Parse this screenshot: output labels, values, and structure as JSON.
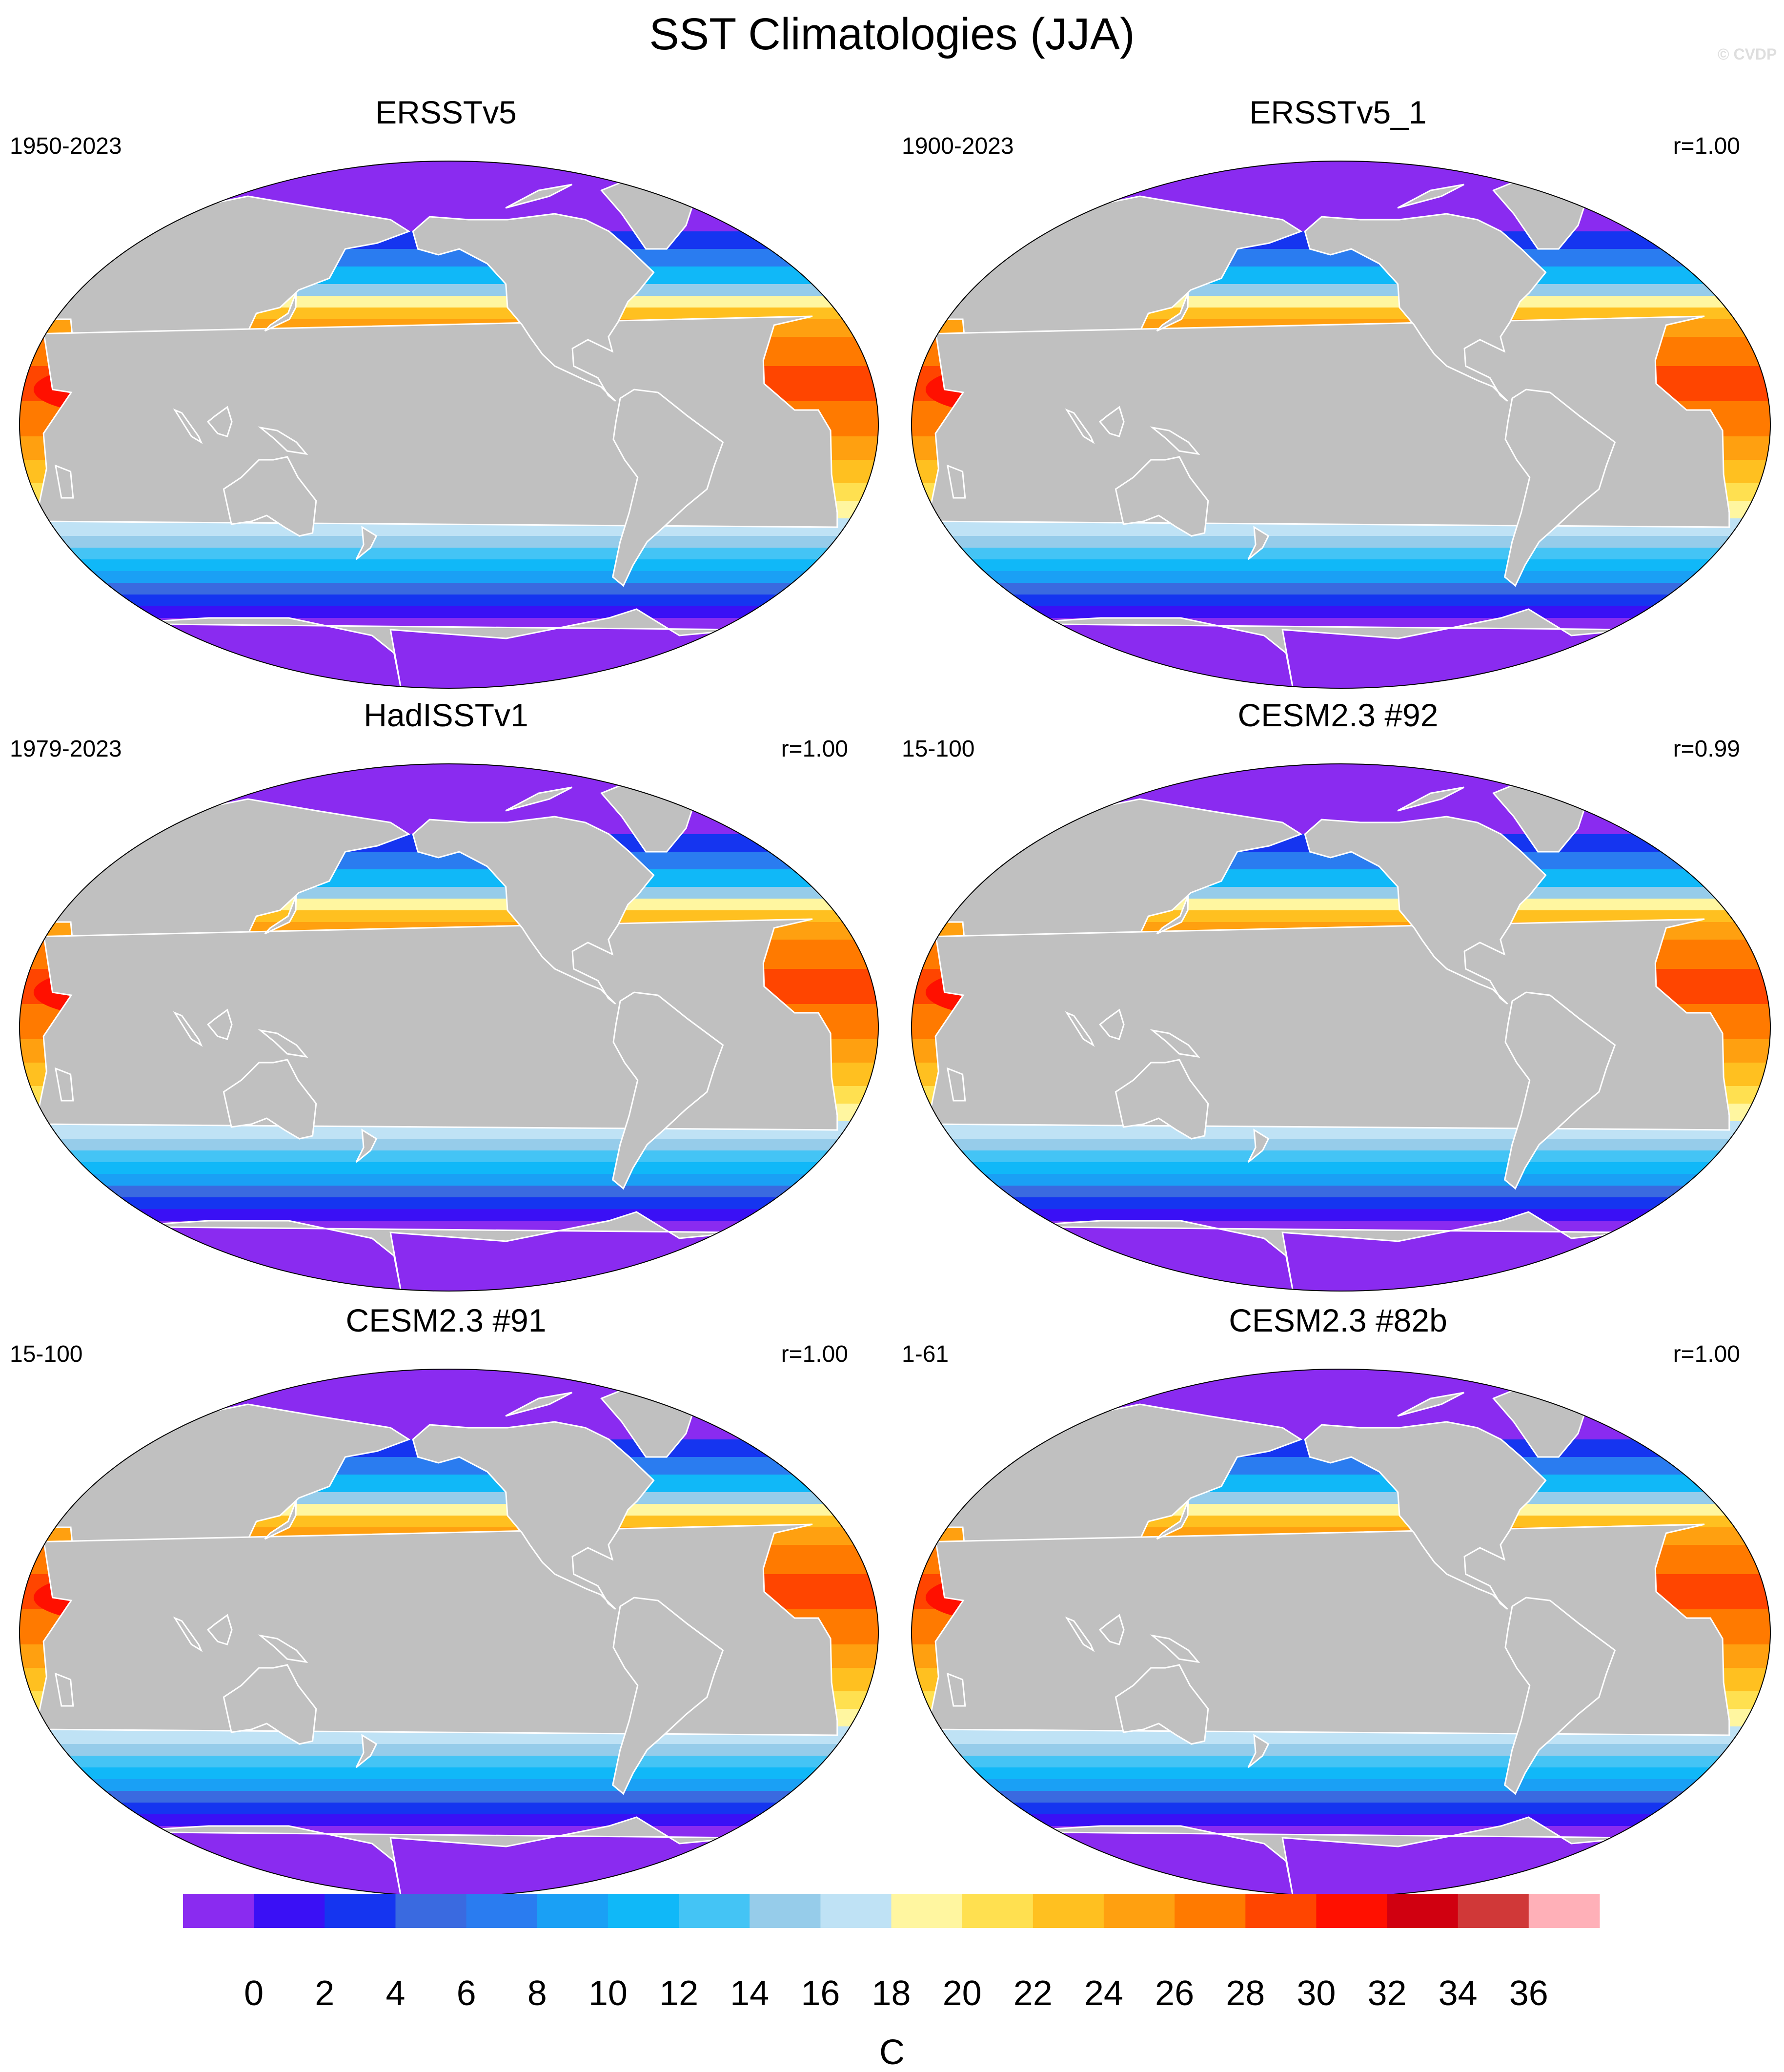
{
  "title": "SST Climatologies (JJA)",
  "watermark": "© CVDP",
  "panels": [
    {
      "name": "ERSSTv5",
      "period": "1950-2023",
      "corr": ""
    },
    {
      "name": "ERSSTv5_1",
      "period": "1900-2023",
      "corr": "r=1.00"
    },
    {
      "name": "HadISSTv1",
      "period": "1979-2023",
      "corr": "r=1.00"
    },
    {
      "name": "CESM2.3 #92",
      "period": "15-100",
      "corr": "r=0.99"
    },
    {
      "name": "CESM2.3 #91",
      "period": "15-100",
      "corr": "r=1.00"
    },
    {
      "name": "CESM2.3 #82b",
      "period": "1-61",
      "corr": "r=1.00"
    }
  ],
  "colorbar": {
    "unit": "C",
    "ticks": [
      "0",
      "2",
      "4",
      "6",
      "8",
      "10",
      "12",
      "14",
      "16",
      "18",
      "20",
      "22",
      "24",
      "26",
      "28",
      "30",
      "32",
      "34",
      "36"
    ],
    "colors": [
      "#8a2bf0",
      "#3a10f5",
      "#1535f0",
      "#3a6ae0",
      "#2a7cf0",
      "#1aa0f5",
      "#10b8f8",
      "#44c4f5",
      "#96ccea",
      "#bfe2f5",
      "#fff6a0",
      "#ffe050",
      "#ffc020",
      "#ffa010",
      "#ff7a00",
      "#ff4500",
      "#ff1000",
      "#d00010",
      "#d03838",
      "#ffb0b8"
    ]
  },
  "map_colors": {
    "land": "#c0c0c0",
    "coast": "#ffffff"
  }
}
